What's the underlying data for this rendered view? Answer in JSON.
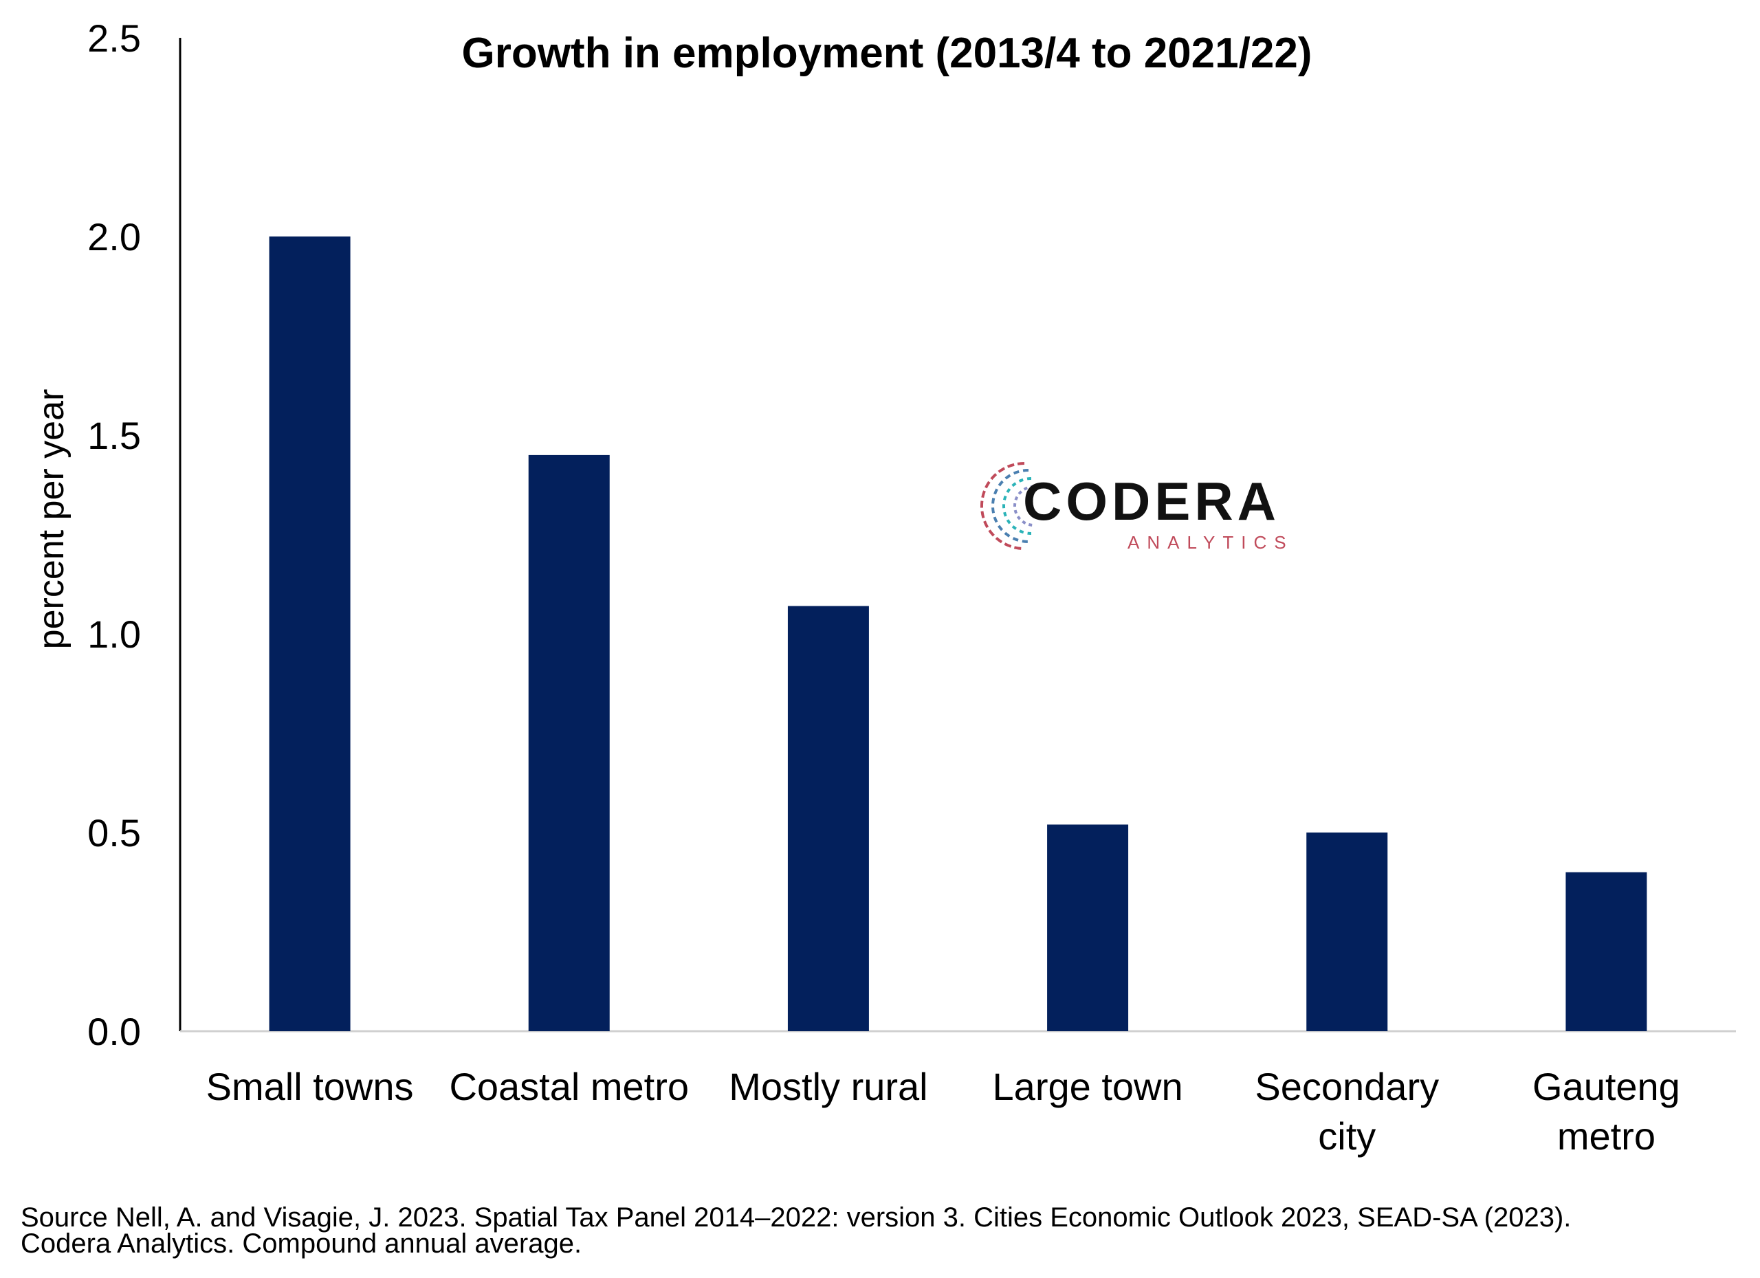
{
  "chart_data": {
    "type": "bar",
    "title": "Growth in employment (2013/4 to 2021/22)",
    "ylabel": "percent per year",
    "xlabel": "",
    "categories": [
      [
        "Small towns"
      ],
      [
        "Coastal metro"
      ],
      [
        "Mostly rural"
      ],
      [
        "Large town"
      ],
      [
        "Secondary",
        "city"
      ],
      [
        "Gauteng",
        "metro"
      ]
    ],
    "values": [
      2.0,
      1.45,
      1.07,
      0.52,
      0.5,
      0.4
    ],
    "ylim": [
      0,
      2.5
    ],
    "yticks": [
      "0.0",
      "0.5",
      "1.0",
      "1.5",
      "2.0",
      "2.5"
    ],
    "bar_color": "#03205c",
    "grid": false
  },
  "logo": {
    "name": "CODERA",
    "sub": "ANALYTICS"
  },
  "source_lines": [
    "Source Nell, A. and Visagie, J. 2023. Spatial Tax Panel 2014–2022: version 3. Cities Economic Outlook 2023, SEAD-SA (2023).",
    "Codera Analytics. Compound annual average."
  ]
}
